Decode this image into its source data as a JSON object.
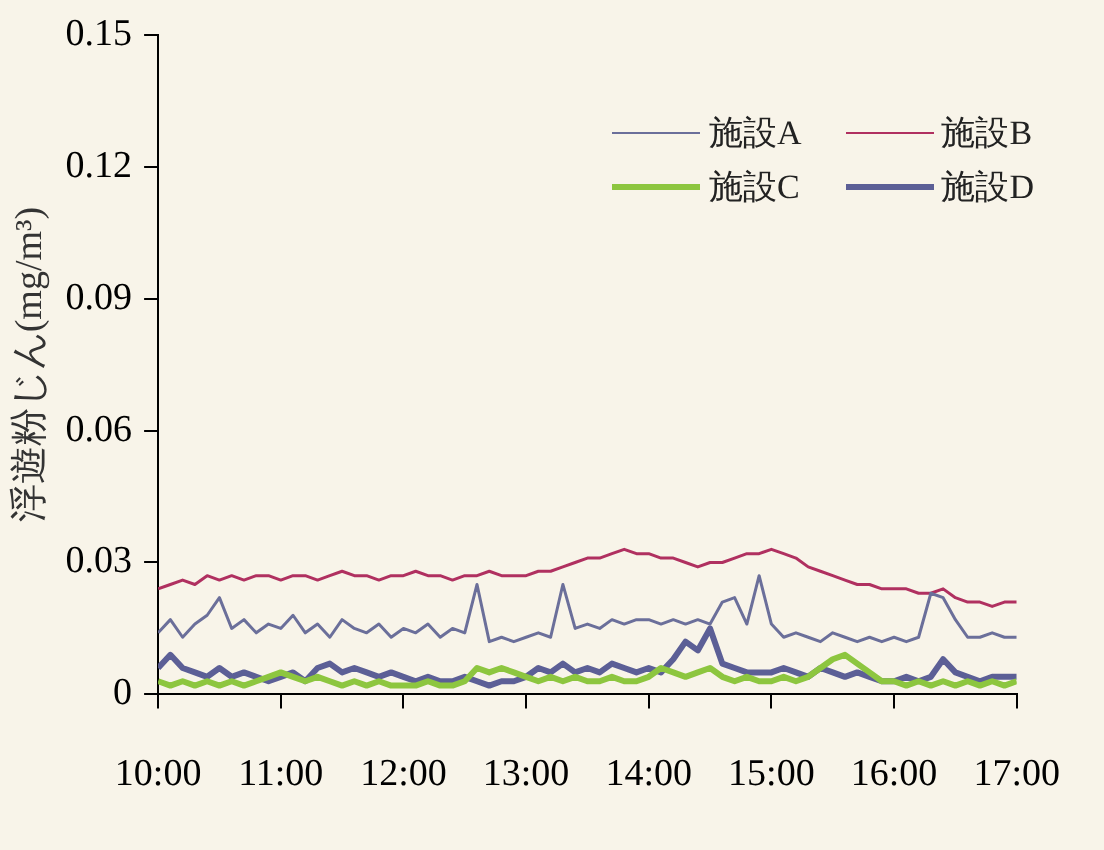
{
  "chart_data": {
    "type": "line",
    "ylabel": "浮遊粉じん(mg/m³)",
    "x": [
      10,
      10.1,
      10.2,
      10.3,
      10.4,
      10.5,
      10.6,
      10.7,
      10.8,
      10.9,
      11,
      11.1,
      11.2,
      11.3,
      11.4,
      11.5,
      11.6,
      11.7,
      11.8,
      11.9,
      12,
      12.1,
      12.2,
      12.3,
      12.4,
      12.5,
      12.6,
      12.7,
      12.8,
      12.9,
      13,
      13.1,
      13.2,
      13.3,
      13.4,
      13.5,
      13.6,
      13.7,
      13.8,
      13.9,
      14,
      14.1,
      14.2,
      14.3,
      14.4,
      14.5,
      14.6,
      14.7,
      14.8,
      14.9,
      15,
      15.1,
      15.2,
      15.3,
      15.4,
      15.5,
      15.6,
      15.7,
      15.8,
      15.9,
      16,
      16.1,
      16.2,
      16.3,
      16.4,
      16.5,
      16.6,
      16.7,
      16.8,
      16.9,
      17
    ],
    "series": [
      {
        "name": "施設A",
        "color": "#6b6f9a",
        "values": [
          0.014,
          0.017,
          0.013,
          0.016,
          0.018,
          0.022,
          0.015,
          0.017,
          0.014,
          0.016,
          0.015,
          0.018,
          0.014,
          0.016,
          0.013,
          0.017,
          0.015,
          0.014,
          0.016,
          0.013,
          0.015,
          0.014,
          0.016,
          0.013,
          0.015,
          0.014,
          0.025,
          0.012,
          0.013,
          0.012,
          0.013,
          0.014,
          0.013,
          0.025,
          0.015,
          0.016,
          0.015,
          0.017,
          0.016,
          0.017,
          0.017,
          0.016,
          0.017,
          0.016,
          0.017,
          0.016,
          0.021,
          0.022,
          0.016,
          0.027,
          0.016,
          0.013,
          0.014,
          0.013,
          0.012,
          0.014,
          0.013,
          0.012,
          0.013,
          0.012,
          0.013,
          0.012,
          0.013,
          0.023,
          0.022,
          0.017,
          0.013,
          0.013,
          0.014,
          0.013,
          0.013
        ]
      },
      {
        "name": "施設B",
        "color": "#b03060",
        "values": [
          0.024,
          0.025,
          0.026,
          0.025,
          0.027,
          0.026,
          0.027,
          0.026,
          0.027,
          0.027,
          0.026,
          0.027,
          0.027,
          0.026,
          0.027,
          0.028,
          0.027,
          0.027,
          0.026,
          0.027,
          0.027,
          0.028,
          0.027,
          0.027,
          0.026,
          0.027,
          0.027,
          0.028,
          0.027,
          0.027,
          0.027,
          0.028,
          0.028,
          0.029,
          0.03,
          0.031,
          0.031,
          0.032,
          0.033,
          0.032,
          0.032,
          0.031,
          0.031,
          0.03,
          0.029,
          0.03,
          0.03,
          0.031,
          0.032,
          0.032,
          0.033,
          0.032,
          0.031,
          0.029,
          0.028,
          0.027,
          0.026,
          0.025,
          0.025,
          0.024,
          0.024,
          0.024,
          0.023,
          0.023,
          0.024,
          0.022,
          0.021,
          0.021,
          0.02,
          0.021,
          0.021
        ]
      },
      {
        "name": "施設C",
        "color": "#8dc63f",
        "values": [
          0.003,
          0.002,
          0.003,
          0.002,
          0.003,
          0.002,
          0.003,
          0.002,
          0.003,
          0.004,
          0.005,
          0.004,
          0.003,
          0.004,
          0.003,
          0.002,
          0.003,
          0.002,
          0.003,
          0.002,
          0.002,
          0.002,
          0.003,
          0.002,
          0.002,
          0.003,
          0.006,
          0.005,
          0.006,
          0.005,
          0.004,
          0.003,
          0.004,
          0.003,
          0.004,
          0.003,
          0.003,
          0.004,
          0.003,
          0.003,
          0.004,
          0.006,
          0.005,
          0.004,
          0.005,
          0.006,
          0.004,
          0.003,
          0.004,
          0.003,
          0.003,
          0.004,
          0.003,
          0.004,
          0.006,
          0.008,
          0.009,
          0.007,
          0.005,
          0.003,
          0.003,
          0.002,
          0.003,
          0.002,
          0.003,
          0.002,
          0.003,
          0.002,
          0.003,
          0.002,
          0.003
        ]
      },
      {
        "name": "施設D",
        "color": "#5c5f96",
        "values": [
          0.006,
          0.009,
          0.006,
          0.005,
          0.004,
          0.006,
          0.004,
          0.005,
          0.004,
          0.003,
          0.004,
          0.005,
          0.003,
          0.006,
          0.007,
          0.005,
          0.006,
          0.005,
          0.004,
          0.005,
          0.004,
          0.003,
          0.004,
          0.003,
          0.003,
          0.004,
          0.003,
          0.002,
          0.003,
          0.003,
          0.004,
          0.006,
          0.005,
          0.007,
          0.005,
          0.006,
          0.005,
          0.007,
          0.006,
          0.005,
          0.006,
          0.005,
          0.008,
          0.012,
          0.01,
          0.015,
          0.007,
          0.006,
          0.005,
          0.005,
          0.005,
          0.006,
          0.005,
          0.004,
          0.006,
          0.005,
          0.004,
          0.005,
          0.004,
          0.003,
          0.003,
          0.004,
          0.003,
          0.004,
          0.008,
          0.005,
          0.004,
          0.003,
          0.004,
          0.004,
          0.004
        ]
      }
    ],
    "xlim": [
      10,
      17
    ],
    "xticks": [
      {
        "value": 10,
        "label": "10:00"
      },
      {
        "value": 11,
        "label": "11:00"
      },
      {
        "value": 12,
        "label": "12:00"
      },
      {
        "value": 13,
        "label": "13:00"
      },
      {
        "value": 14,
        "label": "14:00"
      },
      {
        "value": 15,
        "label": "15:00"
      },
      {
        "value": 16,
        "label": "16:00"
      },
      {
        "value": 17,
        "label": "17:00"
      }
    ],
    "ylim": [
      0,
      0.15
    ],
    "yticks": [
      0,
      0.03,
      0.06,
      0.09,
      0.12,
      0.15
    ],
    "grid": false,
    "legend": "top right",
    "marker": "none",
    "line_style": "solid"
  }
}
